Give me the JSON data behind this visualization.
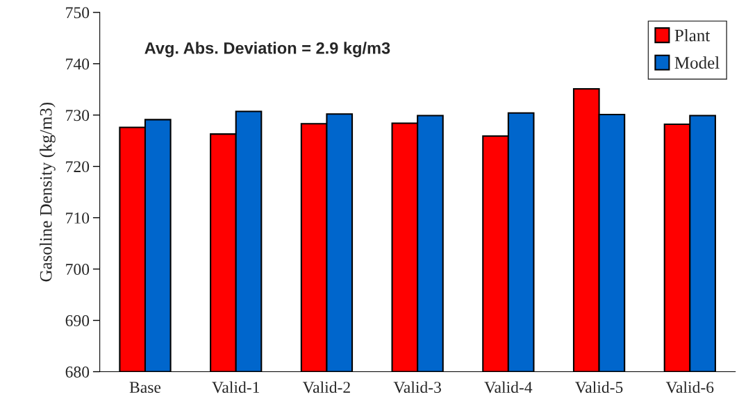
{
  "chart_data": {
    "type": "bar",
    "ylabel": "Gasoline Density (kg/m3)",
    "categories": [
      "Base",
      "Valid-1",
      "Valid-2",
      "Valid-3",
      "Valid-4",
      "Valid-5",
      "Valid-6"
    ],
    "series": [
      {
        "name": "Plant",
        "color": "#ff0000",
        "values": [
          727.6,
          726.3,
          728.3,
          728.4,
          725.9,
          735.1,
          728.2
        ]
      },
      {
        "name": "Model",
        "color": "#0066cc",
        "values": [
          729.1,
          730.7,
          730.2,
          729.9,
          730.4,
          730.1,
          729.9
        ]
      }
    ],
    "ylim": [
      680,
      750
    ],
    "yticks": [
      680,
      690,
      700,
      710,
      720,
      730,
      740,
      750
    ],
    "annotations": [
      "Avg. Abs. Deviation = 2.9 kg/m3"
    ],
    "legend": "top right",
    "grid": false
  }
}
